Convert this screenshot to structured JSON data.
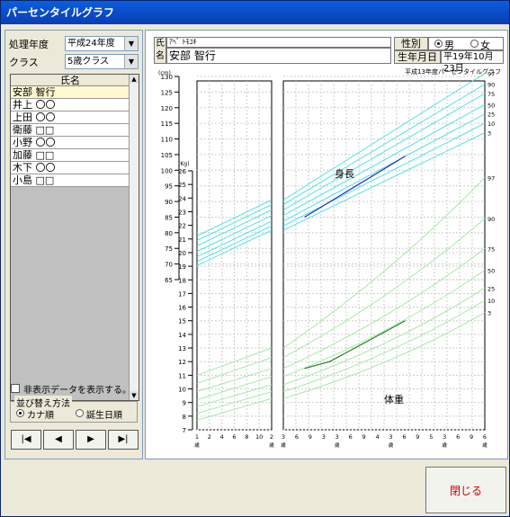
{
  "window": {
    "title": "パーセンタイルグラフ"
  },
  "sidebar": {
    "year_label": "処理年度",
    "year_value": "平成24年度",
    "class_label": "クラス",
    "class_value": "5歳クラス",
    "list_header": "氏名",
    "students": [
      "安部 智行",
      "井上 〇〇",
      "上田 〇〇",
      "衛藤 □□",
      "小野 〇〇",
      "加藤 □□",
      "木下 〇〇",
      "小島 □□"
    ],
    "show_hidden_label": "非表示データを表示する。",
    "sort_group_label": "並び替え方法",
    "sort_kana_label": "カナ順",
    "sort_birth_label": "誕生日順",
    "nav": {
      "first": "|◀",
      "prev": "◀",
      "next": "▶",
      "last": "▶|"
    }
  },
  "info": {
    "name_label": "氏名",
    "kana": "ｱﾍﾞ ﾄﾓﾕｷ",
    "name": "安部  智行",
    "sex_label": "性別",
    "sex_male": "男",
    "sex_female": "女",
    "birth_label": "生年月日",
    "birth_value": "平19年10月23日"
  },
  "close_label": "閉じる",
  "chart_data": {
    "type": "line",
    "title": "平成13年度パーセンタイルグラフ",
    "height_unit": "(cm)",
    "weight_unit": "(Kg)",
    "height_ticks": [
      65,
      70,
      75,
      80,
      85,
      90,
      95,
      100,
      105,
      110,
      115,
      120,
      125,
      130
    ],
    "weight_ticks": [
      7,
      8,
      9,
      10,
      11,
      12,
      13,
      14,
      15,
      16,
      17,
      18,
      19,
      20,
      21,
      22,
      23,
      24,
      25,
      26
    ],
    "percentile_labels_height": [
      "97",
      "90",
      "75",
      "50",
      "25",
      "10",
      "3"
    ],
    "percentile_labels_weight": [
      "97",
      "90",
      "75",
      "50",
      "25",
      "10",
      "3"
    ],
    "x_tick_labels_left": [
      "1",
      "2",
      "4",
      "6",
      "8",
      "10",
      "2"
    ],
    "x_tick_labels_right": [
      "3",
      "6",
      "9",
      "3",
      "3",
      "6",
      "9",
      "4",
      "3",
      "6",
      "9",
      "5",
      "3",
      "6",
      "9",
      "6"
    ],
    "x_unit_label": "歳",
    "height_label": "身長",
    "weight_label": "体重",
    "height_series": {
      "name": "身長",
      "x_age": [
        2.42,
        4.42
      ],
      "y": [
        85,
        104.5
      ]
    },
    "weight_series": {
      "name": "体重",
      "x_age": [
        2.42,
        2.92,
        4.42
      ],
      "y": [
        11.5,
        12,
        15
      ]
    }
  }
}
